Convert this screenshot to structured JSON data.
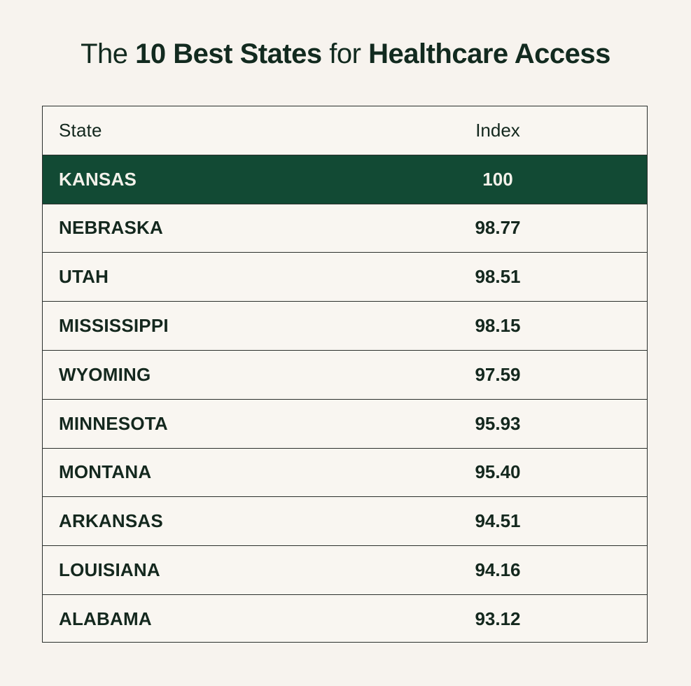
{
  "title": {
    "prefix": "The",
    "bold1": "10 Best States",
    "middle": "for",
    "bold2": "Healthcare Access"
  },
  "chart_data": {
    "type": "table",
    "columns": [
      "State",
      "Index"
    ],
    "highlight_color": "#124a34",
    "background_color": "#f7f3ee",
    "text_color": "#14281e",
    "rows": [
      {
        "state": "KANSAS",
        "index": "100",
        "highlight": true
      },
      {
        "state": "NEBRASKA",
        "index": "98.77"
      },
      {
        "state": "UTAH",
        "index": "98.51"
      },
      {
        "state": "MISSISSIPPI",
        "index": "98.15"
      },
      {
        "state": "WYOMING",
        "index": "97.59"
      },
      {
        "state": "MINNESOTA",
        "index": "95.93"
      },
      {
        "state": "MONTANA",
        "index": "95.40"
      },
      {
        "state": "ARKANSAS",
        "index": "94.51"
      },
      {
        "state": "LOUISIANA",
        "index": "94.16"
      },
      {
        "state": "ALABAMA",
        "index": "93.12"
      }
    ]
  }
}
